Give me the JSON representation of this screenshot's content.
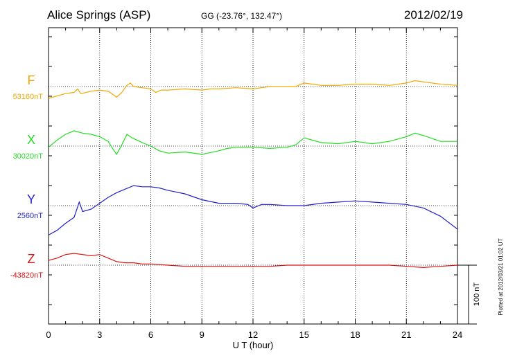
{
  "header": {
    "station": "Alice Springs (ASP)",
    "coords": "GG (-23.76°, 132.47°)",
    "date": "2012/02/19"
  },
  "footer": {
    "xlabel": "U T (hour)",
    "plotted": "Plotted at 2012/03/21 01:02 UT",
    "scale_label": "100 nT"
  },
  "chart_data": {
    "type": "line",
    "xlabel": "U T (hour)",
    "xlim": [
      0,
      24
    ],
    "xticks": [
      0,
      3,
      6,
      9,
      12,
      15,
      18,
      21,
      24
    ],
    "grid": true,
    "scale_nT": 100,
    "series": [
      {
        "name": "F",
        "baseline_label": "53160nT",
        "baseline": 53160,
        "color": "#f0a800",
        "points": [
          [
            0,
            -20
          ],
          [
            0.5,
            -16
          ],
          [
            1.0,
            -12
          ],
          [
            1.5,
            -10
          ],
          [
            1.7,
            -4
          ],
          [
            1.9,
            -12
          ],
          [
            2.5,
            -8
          ],
          [
            3.0,
            -6
          ],
          [
            3.5,
            -8
          ],
          [
            3.8,
            -14
          ],
          [
            4.0,
            -18
          ],
          [
            4.3,
            -10
          ],
          [
            4.6,
            2
          ],
          [
            4.8,
            6
          ],
          [
            5.0,
            0
          ],
          [
            5.5,
            -2
          ],
          [
            6.0,
            -4
          ],
          [
            6.3,
            -10
          ],
          [
            6.6,
            -6
          ],
          [
            7.0,
            -6
          ],
          [
            8.0,
            -4
          ],
          [
            9.0,
            -6
          ],
          [
            9.5,
            -4
          ],
          [
            10,
            -4
          ],
          [
            11,
            -2
          ],
          [
            12,
            -4
          ],
          [
            12.5,
            -2
          ],
          [
            13,
            0
          ],
          [
            14,
            0
          ],
          [
            14.5,
            0
          ],
          [
            15,
            6
          ],
          [
            15.5,
            4
          ],
          [
            16,
            2
          ],
          [
            17,
            2
          ],
          [
            18,
            4
          ],
          [
            19,
            4
          ],
          [
            20,
            2
          ],
          [
            20.5,
            4
          ],
          [
            21,
            6
          ],
          [
            21.5,
            10
          ],
          [
            22,
            8
          ],
          [
            23,
            4
          ],
          [
            24,
            2
          ]
        ]
      },
      {
        "name": "X",
        "baseline_label": "30020nT",
        "baseline": 30020,
        "color": "#22dd22",
        "points": [
          [
            0,
            -2
          ],
          [
            0.5,
            10
          ],
          [
            1.0,
            20
          ],
          [
            1.5,
            26
          ],
          [
            2.0,
            22
          ],
          [
            2.5,
            20
          ],
          [
            3.0,
            16
          ],
          [
            3.5,
            8
          ],
          [
            3.8,
            -6
          ],
          [
            4.0,
            -14
          ],
          [
            4.3,
            2
          ],
          [
            4.6,
            20
          ],
          [
            4.9,
            14
          ],
          [
            5.5,
            6
          ],
          [
            6.0,
            0
          ],
          [
            6.5,
            -8
          ],
          [
            7.0,
            -12
          ],
          [
            8.0,
            -10
          ],
          [
            9.0,
            -14
          ],
          [
            10,
            -8
          ],
          [
            10.5,
            -4
          ],
          [
            11,
            -2
          ],
          [
            12,
            -2
          ],
          [
            13,
            -4
          ],
          [
            14,
            -2
          ],
          [
            14.5,
            2
          ],
          [
            15,
            14
          ],
          [
            15.5,
            10
          ],
          [
            16,
            6
          ],
          [
            17,
            4
          ],
          [
            18,
            8
          ],
          [
            19,
            4
          ],
          [
            20,
            8
          ],
          [
            21,
            16
          ],
          [
            21.5,
            22
          ],
          [
            22,
            18
          ],
          [
            23,
            8
          ],
          [
            24,
            8
          ]
        ]
      },
      {
        "name": "Y",
        "baseline_label": "2560nT",
        "baseline": 2560,
        "color": "#1f1fcc",
        "points": [
          [
            0,
            -50
          ],
          [
            0.5,
            -42
          ],
          [
            1.0,
            -30
          ],
          [
            1.5,
            -20
          ],
          [
            1.8,
            6
          ],
          [
            2.0,
            -10
          ],
          [
            2.5,
            -6
          ],
          [
            3.0,
            4
          ],
          [
            3.5,
            14
          ],
          [
            4.0,
            22
          ],
          [
            4.5,
            28
          ],
          [
            5.0,
            34
          ],
          [
            5.5,
            32
          ],
          [
            6.0,
            32
          ],
          [
            6.5,
            30
          ],
          [
            7.0,
            26
          ],
          [
            8.0,
            20
          ],
          [
            9.0,
            10
          ],
          [
            10,
            4
          ],
          [
            11,
            4
          ],
          [
            11.7,
            2
          ],
          [
            12,
            -4
          ],
          [
            12.5,
            2
          ],
          [
            13,
            2
          ],
          [
            14,
            0
          ],
          [
            15,
            0
          ],
          [
            16,
            4
          ],
          [
            17,
            6
          ],
          [
            18,
            8
          ],
          [
            19,
            6
          ],
          [
            20,
            4
          ],
          [
            21,
            2
          ],
          [
            22,
            -4
          ],
          [
            23,
            -18
          ],
          [
            24,
            -40
          ]
        ]
      },
      {
        "name": "Z",
        "baseline_label": "-43820nT",
        "baseline": -43820,
        "color": "#dd1111",
        "points": [
          [
            0,
            8
          ],
          [
            0.5,
            12
          ],
          [
            1.0,
            18
          ],
          [
            1.5,
            20
          ],
          [
            2.0,
            18
          ],
          [
            2.5,
            16
          ],
          [
            3.0,
            18
          ],
          [
            3.5,
            12
          ],
          [
            4.0,
            6
          ],
          [
            4.5,
            4
          ],
          [
            5.0,
            4
          ],
          [
            5.5,
            2
          ],
          [
            6.0,
            2
          ],
          [
            7.0,
            0
          ],
          [
            8.0,
            -2
          ],
          [
            9.0,
            -2
          ],
          [
            10,
            -2
          ],
          [
            11,
            -2
          ],
          [
            12,
            -2
          ],
          [
            13,
            -2
          ],
          [
            14,
            0
          ],
          [
            15,
            0
          ],
          [
            16,
            0
          ],
          [
            17,
            0
          ],
          [
            18,
            0
          ],
          [
            19,
            0
          ],
          [
            20,
            0
          ],
          [
            21,
            -2
          ],
          [
            22,
            -4
          ],
          [
            23,
            -2
          ],
          [
            24,
            0
          ]
        ]
      }
    ]
  }
}
